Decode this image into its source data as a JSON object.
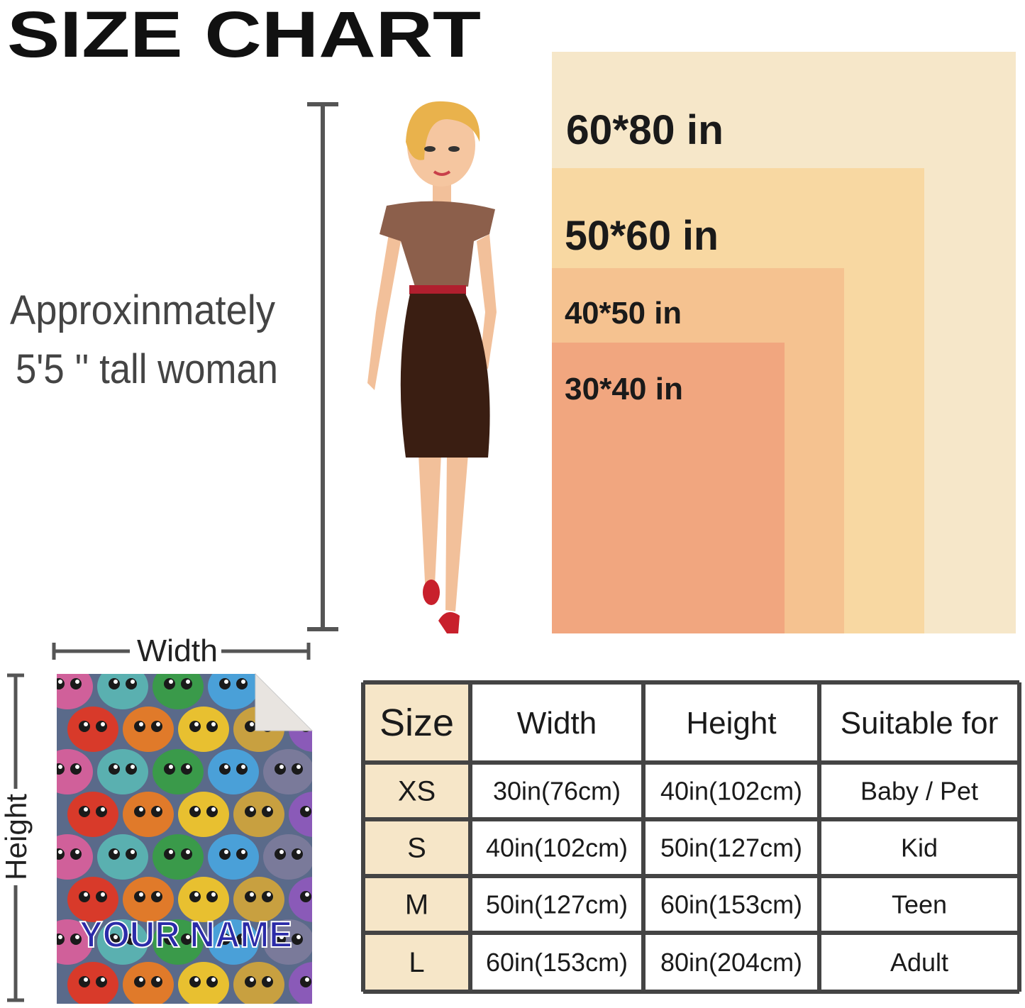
{
  "header": {
    "title": "SIZE CHART"
  },
  "size_panels": [
    {
      "label": "60*80 in"
    },
    {
      "label": "50*60 in"
    },
    {
      "label": "40*50 in"
    },
    {
      "label": "30*40 in"
    }
  ],
  "woman_note": {
    "line1": "Approxinmately",
    "line2": "5'5 '' tall woman"
  },
  "blanket": {
    "width_label": "Width",
    "height_label": "Height",
    "name_text": "YOUR NAME"
  },
  "table": {
    "columns": [
      "Size",
      "Width",
      "Height",
      "Suitable for"
    ],
    "rows": [
      [
        "XS",
        "30in(76cm)",
        "40in(102cm)",
        "Baby / Pet"
      ],
      [
        "S",
        "40in(102cm)",
        "50in(127cm)",
        "Kid"
      ],
      [
        "M",
        "50in(127cm)",
        "60in(153cm)",
        "Teen"
      ],
      [
        "L",
        "60in(153cm)",
        "80in(204cm)",
        "Adult"
      ]
    ]
  }
}
